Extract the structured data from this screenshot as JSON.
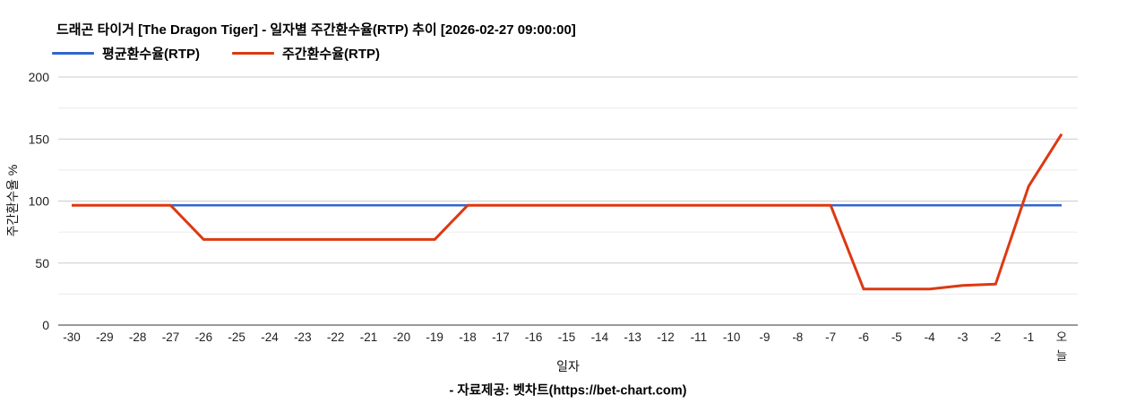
{
  "chart": {
    "title": "드래곤 타이거 [The Dragon Tiger] - 일자별 주간환수율(RTP) 추이 [2026-02-27 09:00:00]",
    "xlabel": "일자",
    "ylabel": "주간환수율 %",
    "footer": "- 자료제공: 벳차트(https://bet-chart.com)"
  },
  "chart_data": {
    "type": "line",
    "title": "드래곤 타이거 [The Dragon Tiger] - 일자별 주간환수율(RTP) 추이 [2026-02-27 09:00:00]",
    "xlabel": "일자",
    "ylabel": "주간환수율 %",
    "ylim": [
      0,
      200
    ],
    "yticks": [
      0,
      50,
      100,
      150,
      200
    ],
    "minor_grid_step": 25,
    "grid": true,
    "legend_position": "top-left",
    "colors": {
      "average": "#3366cc",
      "weekly": "#dc3912",
      "major_grid": "#cccccc",
      "minor_grid": "#ebebeb",
      "baseline": "#333333"
    },
    "categories": [
      "-30",
      "-29",
      "-28",
      "-27",
      "-26",
      "-25",
      "-24",
      "-23",
      "-22",
      "-21",
      "-20",
      "-19",
      "-18",
      "-17",
      "-16",
      "-15",
      "-14",
      "-13",
      "-12",
      "-11",
      "-10",
      "-9",
      "-8",
      "-7",
      "-6",
      "-5",
      "-4",
      "-3",
      "-2",
      "-1",
      "오\n늘"
    ],
    "series": [
      {
        "name": "평균환수율(RTP)",
        "color": "#3366cc",
        "values": [
          96.5,
          96.5,
          96.5,
          96.5,
          96.5,
          96.5,
          96.5,
          96.5,
          96.5,
          96.5,
          96.5,
          96.5,
          96.5,
          96.5,
          96.5,
          96.5,
          96.5,
          96.5,
          96.5,
          96.5,
          96.5,
          96.5,
          96.5,
          96.5,
          96.5,
          96.5,
          96.5,
          96.5,
          96.5,
          96.5,
          96.5
        ]
      },
      {
        "name": "주간환수율(RTP)",
        "color": "#dc3912",
        "values": [
          96.5,
          96.5,
          96.5,
          96.5,
          69,
          69,
          69,
          69,
          69,
          69,
          69,
          69,
          96.5,
          96.5,
          96.5,
          96.5,
          96.5,
          96.5,
          96.5,
          96.5,
          96.5,
          96.5,
          96.5,
          96.5,
          29,
          29,
          29,
          32,
          33,
          112,
          154
        ]
      }
    ]
  }
}
